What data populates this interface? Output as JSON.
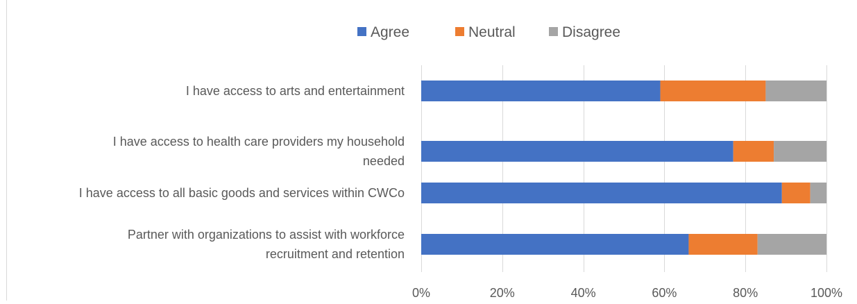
{
  "chart_data": {
    "type": "bar",
    "orientation": "horizontal",
    "stacked": "percent",
    "title": "",
    "xlabel": "",
    "ylabel": "",
    "xlim": [
      0,
      100
    ],
    "x_ticks": [
      "0%",
      "20%",
      "40%",
      "60%",
      "80%",
      "100%"
    ],
    "grid": true,
    "legend_position": "top",
    "categories": [
      [
        "I have access to arts and entertainment"
      ],
      [
        "I have access to health care providers my household",
        "needed"
      ],
      [
        "I have access to all basic goods and services within CWCo"
      ],
      [
        "Partner with organizations to assist with workforce",
        "recruitment and retention"
      ]
    ],
    "series": [
      {
        "name": "Agree",
        "color": "#4472c4",
        "values": [
          59,
          77,
          89,
          66
        ]
      },
      {
        "name": "Neutral",
        "color": "#ed7d31",
        "values": [
          26,
          10,
          7,
          17
        ]
      },
      {
        "name": "Disagree",
        "color": "#a5a5a5",
        "values": [
          15,
          13,
          4,
          17
        ]
      }
    ]
  }
}
